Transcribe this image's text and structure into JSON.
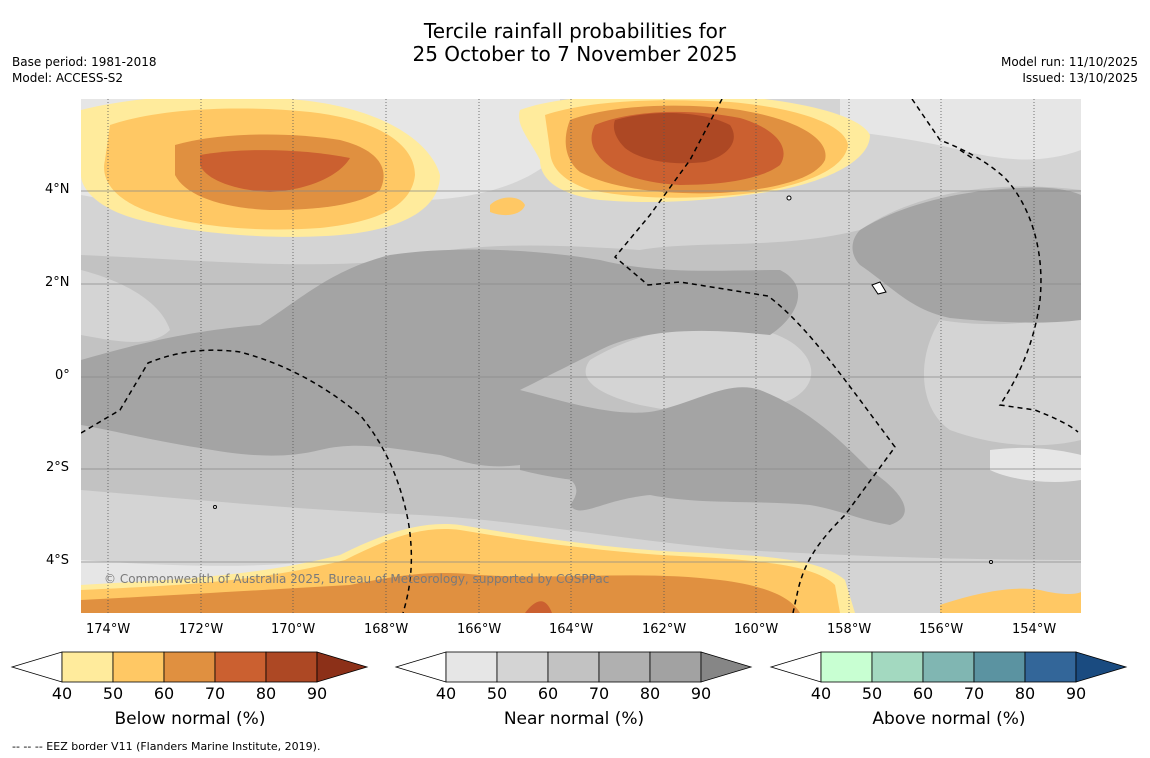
{
  "title_line1": "Tercile rainfall probabilities for",
  "title_line2": "25 October to 7 November 2025",
  "meta_left": [
    "Base period: 1981-2018",
    "Model: ACCESS-S2"
  ],
  "meta_right": [
    "Model run: 11/10/2025",
    "Issued: 13/10/2025"
  ],
  "copyright": "© Commonwealth of Australia 2025, Bureau of Meteorology, supported by COSPPac",
  "footer": "--  --  -- EEZ border V11 (Flanders Marine Institute, 2019).",
  "lon_labels": [
    "174°W",
    "172°W",
    "170°W",
    "168°W",
    "166°W",
    "164°W",
    "162°W",
    "160°W",
    "158°W",
    "156°W",
    "154°W"
  ],
  "lat_labels": [
    "4°N",
    "2°N",
    "0°",
    "2°S",
    "4°S"
  ],
  "colorbars": [
    {
      "label": "Below normal (%)",
      "ticks": [
        "40",
        "50",
        "60",
        "70",
        "80",
        "90"
      ],
      "colors": [
        "#ffffff",
        "#ffeb9c",
        "#ffc864",
        "#e09040",
        "#cb6030",
        "#ad4824",
        "#8c3018"
      ]
    },
    {
      "label": "Near normal (%)",
      "ticks": [
        "40",
        "50",
        "60",
        "70",
        "80",
        "90"
      ],
      "colors": [
        "#ffffff",
        "#e6e6e6",
        "#d4d4d4",
        "#c2c2c2",
        "#b0b0b0",
        "#a2a2a2",
        "#868686"
      ]
    },
    {
      "label": "Above normal (%)",
      "ticks": [
        "40",
        "50",
        "60",
        "70",
        "80",
        "90"
      ],
      "colors": [
        "#ffffff",
        "#c8ffd2",
        "#a3d9c0",
        "#80b6b2",
        "#5b93a1",
        "#336699",
        "#1a4b80"
      ]
    }
  ],
  "colors": {
    "near_base": "#c2c2c2",
    "near_light": "#d4d4d4",
    "near_lighter": "#e6e6e6",
    "near_dark": "#a4a4a4",
    "below_50": "#ffeb9c",
    "below_60": "#ffc864",
    "below_70": "#e09040",
    "below_80": "#cb6030",
    "below_90": "#ad4824"
  }
}
